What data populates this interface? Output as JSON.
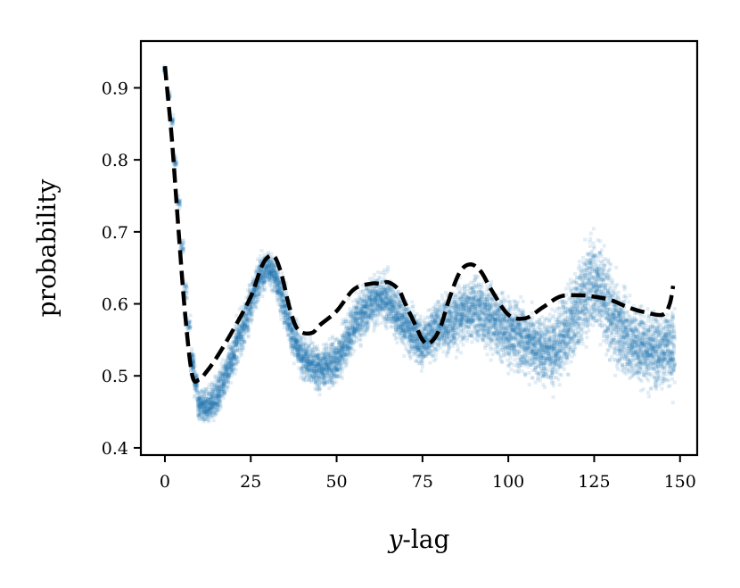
{
  "chart_data": {
    "type": "scatter",
    "xlabel_var": "y",
    "xlabel_rest": "-lag",
    "ylabel": "probability",
    "xlim": [
      -7,
      155
    ],
    "ylim": [
      0.39,
      0.965
    ],
    "xticks": [
      0,
      25,
      50,
      75,
      100,
      125,
      150
    ],
    "xtick_labels": [
      "0",
      "25",
      "50",
      "75",
      "100",
      "125",
      "150"
    ],
    "yticks": [
      0.4,
      0.5,
      0.6,
      0.7,
      0.8,
      0.9
    ],
    "ytick_labels": [
      "0.4",
      "0.5",
      "0.6",
      "0.7",
      "0.8",
      "0.9"
    ],
    "grid": false,
    "scatter_color": "#1f77b4",
    "line_color": "#000000",
    "scatter_band": {
      "x": [
        0,
        2,
        4,
        6,
        8,
        10,
        12,
        15,
        20,
        25,
        28,
        30,
        32,
        34,
        37,
        40,
        45,
        50,
        55,
        60,
        63,
        65,
        70,
        75,
        78,
        80,
        85,
        88,
        90,
        95,
        100,
        105,
        110,
        115,
        120,
        123,
        125,
        128,
        130,
        135,
        140,
        145,
        148
      ],
      "center": [
        0.925,
        0.855,
        0.74,
        0.62,
        0.52,
        0.46,
        0.455,
        0.47,
        0.53,
        0.6,
        0.64,
        0.65,
        0.64,
        0.61,
        0.56,
        0.525,
        0.51,
        0.52,
        0.57,
        0.6,
        0.61,
        0.605,
        0.57,
        0.545,
        0.56,
        0.57,
        0.58,
        0.59,
        0.595,
        0.58,
        0.56,
        0.55,
        0.535,
        0.545,
        0.59,
        0.62,
        0.63,
        0.61,
        0.58,
        0.55,
        0.54,
        0.535,
        0.54
      ],
      "spread": [
        0.004,
        0.006,
        0.008,
        0.01,
        0.015,
        0.018,
        0.02,
        0.022,
        0.025,
        0.025,
        0.022,
        0.02,
        0.02,
        0.022,
        0.025,
        0.025,
        0.025,
        0.028,
        0.03,
        0.03,
        0.03,
        0.03,
        0.03,
        0.028,
        0.03,
        0.032,
        0.035,
        0.038,
        0.04,
        0.04,
        0.04,
        0.04,
        0.04,
        0.045,
        0.05,
        0.055,
        0.055,
        0.055,
        0.05,
        0.045,
        0.045,
        0.045,
        0.045
      ]
    },
    "model_line": {
      "x": [
        0,
        2,
        4,
        6,
        8,
        10,
        12,
        15,
        20,
        25,
        28,
        30,
        32,
        34,
        36,
        38,
        40,
        43,
        45,
        50,
        55,
        60,
        63,
        65,
        68,
        70,
        73,
        75,
        77,
        80,
        83,
        86,
        89,
        92,
        95,
        100,
        105,
        110,
        115,
        120,
        125,
        130,
        135,
        140,
        145,
        147,
        148
      ],
      "y": [
        0.93,
        0.83,
        0.7,
        0.58,
        0.5,
        0.495,
        0.505,
        0.525,
        0.565,
        0.61,
        0.65,
        0.665,
        0.665,
        0.64,
        0.6,
        0.57,
        0.56,
        0.56,
        0.57,
        0.59,
        0.62,
        0.628,
        0.628,
        0.63,
        0.62,
        0.6,
        0.57,
        0.55,
        0.545,
        0.565,
        0.61,
        0.645,
        0.655,
        0.645,
        0.62,
        0.585,
        0.58,
        0.595,
        0.61,
        0.612,
        0.61,
        0.605,
        0.595,
        0.588,
        0.585,
        0.6,
        0.625
      ]
    }
  }
}
